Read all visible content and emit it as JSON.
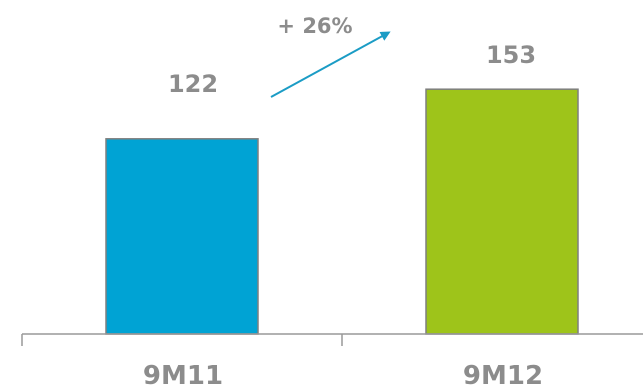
{
  "chart_data": {
    "type": "bar",
    "categories": [
      "9M11",
      "9M12"
    ],
    "values": [
      122,
      153
    ],
    "value_labels": [
      "122",
      "153"
    ],
    "colors": [
      "#00a3d4",
      "#9ec41a"
    ],
    "ylim": [
      0,
      180
    ],
    "grid": false,
    "legend": "none",
    "annotations": {
      "change_label": "+ 26%",
      "arrow_color": "#1b9cc5"
    },
    "title": "",
    "xlabel": "",
    "ylabel": ""
  }
}
